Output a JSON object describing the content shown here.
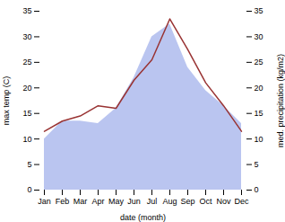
{
  "chart_data": {
    "type": "line",
    "categories": [
      "Jan",
      "Feb",
      "Mar",
      "Apr",
      "May",
      "Jun",
      "Jul",
      "Aug",
      "Sep",
      "Oct",
      "Nov",
      "Dec"
    ],
    "series": [
      {
        "type": "area",
        "axis": "y2",
        "color": "#b3bfee",
        "values": [
          10.0,
          13.5,
          13.5,
          13.0,
          16.0,
          22.0,
          30.0,
          32.5,
          24.0,
          19.5,
          16.5,
          13.0
        ]
      },
      {
        "type": "line",
        "color": "#993333",
        "values": [
          11.5,
          13.5,
          14.5,
          16.5,
          16.0,
          21.5,
          25.5,
          33.5,
          27.5,
          21.0,
          16.5,
          11.5
        ]
      }
    ],
    "xlabel": "date (month)",
    "ylabel": "max temp (C)",
    "y2label": "med. precipitation (kg/m2)",
    "ylim": [
      0,
      35
    ],
    "yticks": [
      0,
      5,
      10,
      15,
      20,
      25,
      30,
      35
    ],
    "y2lim": [
      0,
      35
    ],
    "y2ticks": [
      0,
      5,
      10,
      15,
      20,
      25,
      30,
      35
    ]
  }
}
